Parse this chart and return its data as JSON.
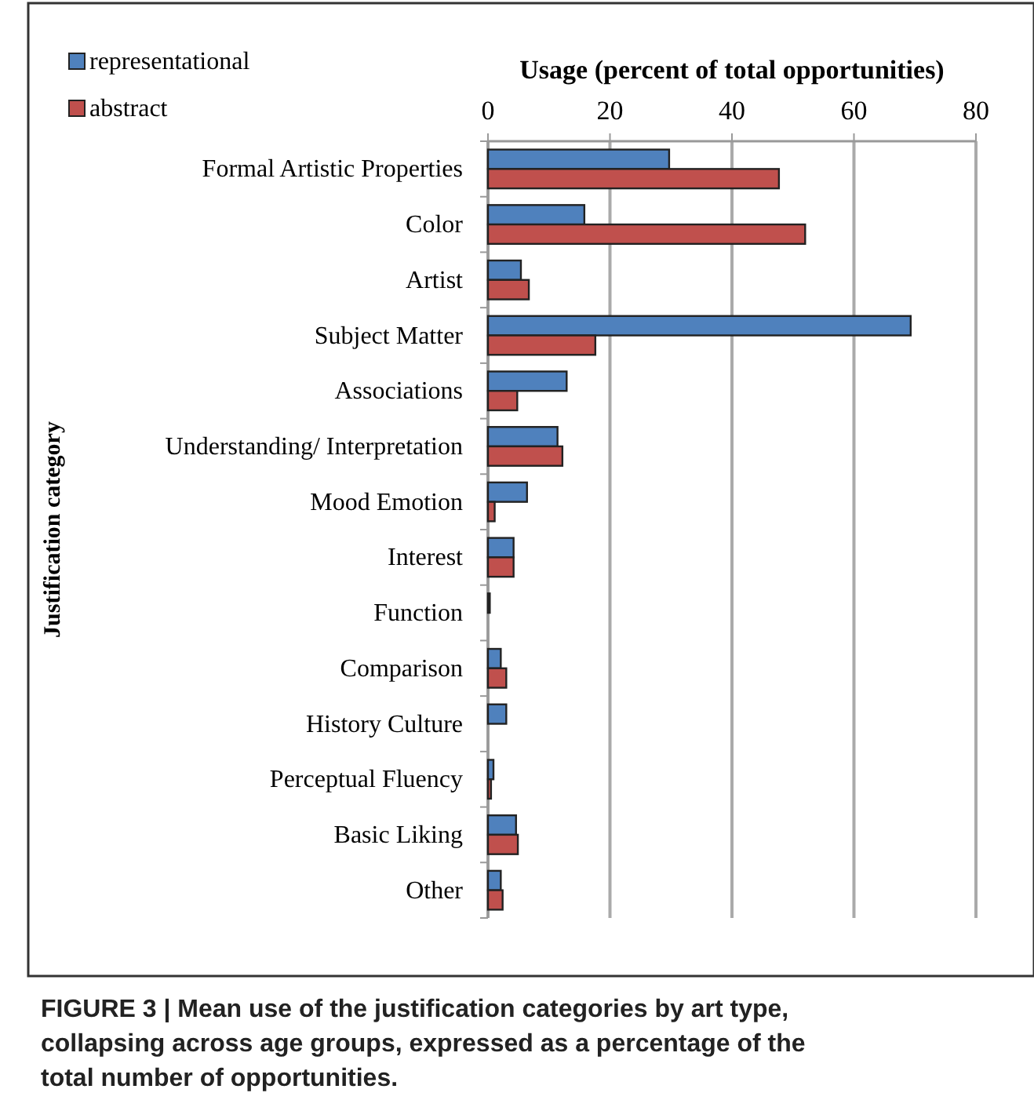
{
  "chart_data": {
    "type": "bar",
    "orientation": "horizontal",
    "xlabel": "Usage (percent of total opportunities)",
    "ylabel": "Justification category",
    "categories": [
      "Formal Artistic Properties",
      "Color",
      "Artist",
      "Subject Matter",
      "Associations",
      "Understanding/ Interpretation",
      "Mood Emotion",
      "Interest",
      "Function",
      "Comparison",
      "History Culture",
      "Perceptual Fluency",
      "Basic Liking",
      "Other"
    ],
    "series": [
      {
        "name": "representational",
        "color": "#4f81bd",
        "values": [
          29.7,
          15.8,
          5.4,
          69.3,
          12.9,
          11.4,
          6.4,
          4.2,
          0.3,
          2.1,
          3.0,
          0.9,
          4.6,
          2.1
        ]
      },
      {
        "name": "abstract",
        "color": "#c0504d",
        "values": [
          47.7,
          52.0,
          6.7,
          17.6,
          4.8,
          12.2,
          1.1,
          4.2,
          0,
          3.0,
          0,
          0.5,
          4.9,
          2.4
        ]
      }
    ],
    "xlim": [
      0,
      80
    ],
    "xticks": [
      0,
      20,
      40,
      60,
      80
    ],
    "grid": "x",
    "legend": "top left",
    "annotations": [
      "FIGURE 3 | Mean use of the justification categories by art type, collapsing across age groups, expressed as a percentage of the total number of opportunities."
    ]
  }
}
